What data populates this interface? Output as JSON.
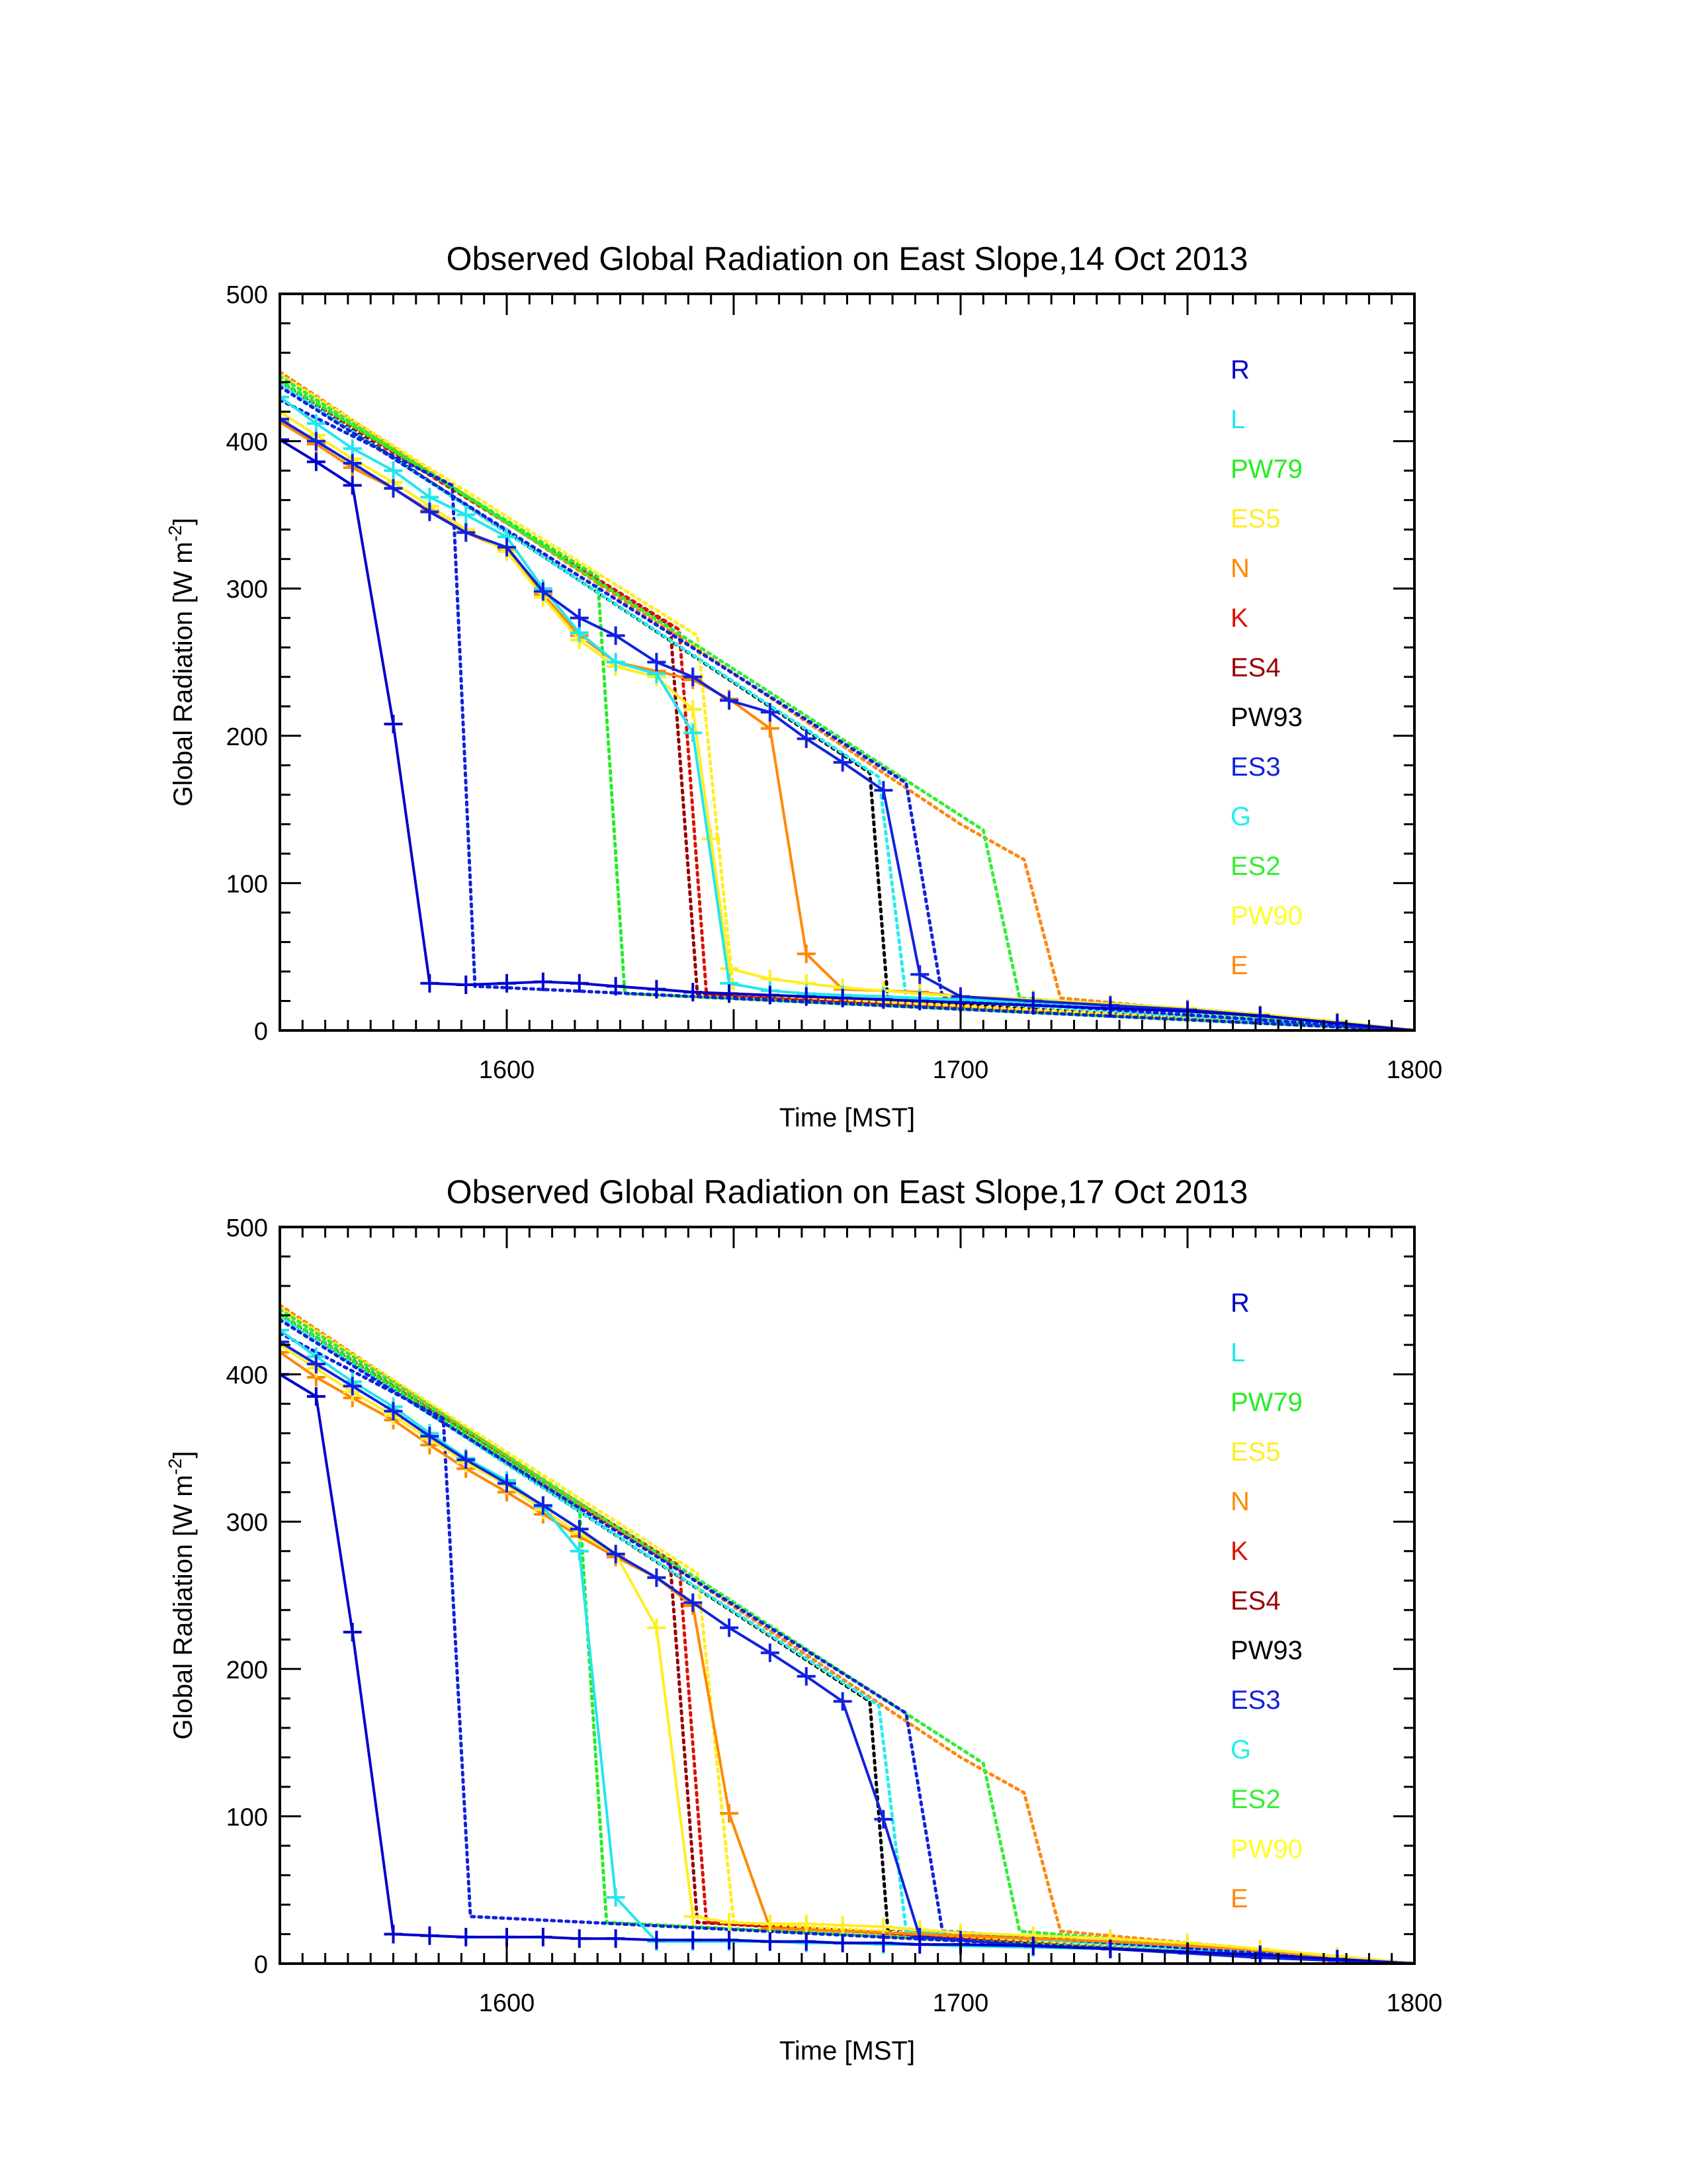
{
  "colors": {
    "R": "#0000cc",
    "L": "#22e6ee",
    "PW79": "#22ee22",
    "ES5": "#ffee22",
    "N": "#ff8800",
    "K": "#dd1100",
    "ES4": "#990000",
    "PW93": "#000000",
    "ES3": "#1122dd",
    "G": "#22eeee",
    "ES2": "#33ee33",
    "PW90": "#ffff22",
    "E": "#ff8811"
  },
  "chart_data": [
    {
      "type": "line",
      "title": "Observed Global Radiation on East Slope,14 Oct 2013",
      "xlabel": "Time [MST]",
      "ylabel": "Global Radiation [W m",
      "ylabel_sup": "-2",
      "ylabel_end": "]",
      "xlim": [
        1550,
        1800
      ],
      "ylim": [
        0,
        500
      ],
      "xticks": [
        1600,
        1700,
        1800
      ],
      "yticks": [
        0,
        100,
        200,
        300,
        400,
        500
      ],
      "grid": false,
      "legend": "right",
      "legend_entries": [
        "R",
        "L",
        "PW79",
        "ES5",
        "N",
        "K",
        "ES4",
        "PW93",
        "ES3",
        "G",
        "ES2",
        "PW90",
        "E"
      ],
      "series": [
        {
          "name": "PW93",
          "style": "dotted",
          "x": [
            1550,
            1680,
            1684,
            1800
          ],
          "y": [
            440,
            175,
            20,
            0
          ]
        },
        {
          "name": "ES4",
          "style": "dotted",
          "x": [
            1550,
            1636,
            1642,
            1800
          ],
          "y": [
            441,
            275,
            25,
            0
          ]
        },
        {
          "name": "K",
          "style": "dotted",
          "x": [
            1550,
            1638,
            1644,
            1800
          ],
          "y": [
            440,
            272,
            25,
            0
          ]
        },
        {
          "name": "E",
          "style": "dotted",
          "x": [
            1550,
            1700,
            1714,
            1722,
            1800
          ],
          "y": [
            447,
            140,
            116,
            22,
            0
          ]
        },
        {
          "name": "ES5",
          "style": "dotted",
          "x": [
            1550,
            1642,
            1650,
            1800
          ],
          "y": [
            445,
            268,
            25,
            0
          ]
        },
        {
          "name": "ES2",
          "style": "dotted",
          "x": [
            1550,
            1705,
            1713,
            1800
          ],
          "y": [
            444,
            136,
            22,
            0
          ]
        },
        {
          "name": "PW79",
          "style": "dotted",
          "x": [
            1550,
            1620,
            1626,
            1800
          ],
          "y": [
            441,
            308,
            25,
            0
          ]
        },
        {
          "name": "G",
          "style": "dotted",
          "x": [
            1550,
            1682,
            1688,
            1800
          ],
          "y": [
            439,
            172,
            22,
            0
          ]
        },
        {
          "name": "ES3",
          "style": "dotted",
          "x": [
            1550,
            1588,
            1593,
            1800
          ],
          "y": [
            428,
            370,
            30,
            0
          ]
        },
        {
          "name": "ES3",
          "style": "dotted",
          "x": [
            1550,
            1688,
            1696,
            1800
          ],
          "y": [
            437,
            168,
            22,
            0
          ]
        },
        {
          "name": "N",
          "style": "solid",
          "x": [
            1550,
            1558,
            1566,
            1575,
            1583,
            1591,
            1600,
            1608,
            1616,
            1624,
            1633,
            1641,
            1649,
            1658,
            1666,
            1674,
            1683,
            1691,
            1700,
            1716,
            1733,
            1750,
            1766,
            1783,
            1800
          ],
          "y": [
            413,
            398,
            382,
            368,
            353,
            338,
            326,
            296,
            268,
            250,
            244,
            238,
            225,
            205,
            52,
            28,
            27,
            26,
            23,
            21,
            18,
            15,
            11,
            6,
            0
          ]
        },
        {
          "name": "ES5",
          "style": "solid",
          "x": [
            1550,
            1558,
            1566,
            1575,
            1583,
            1591,
            1600,
            1608,
            1616,
            1624,
            1633,
            1641,
            1645,
            1649,
            1658,
            1666,
            1674,
            1683,
            1691,
            1700,
            1716,
            1733,
            1750,
            1766,
            1783,
            1800
          ],
          "y": [
            420,
            404,
            388,
            372,
            356,
            340,
            325,
            294,
            265,
            247,
            240,
            218,
            130,
            42,
            35,
            32,
            29,
            27,
            25,
            23,
            21,
            18,
            15,
            11,
            6,
            0
          ]
        },
        {
          "name": "L",
          "style": "solid",
          "x": [
            1550,
            1558,
            1566,
            1575,
            1583,
            1591,
            1600,
            1608,
            1616,
            1624,
            1633,
            1641,
            1649,
            1658,
            1666,
            1674,
            1683,
            1691,
            1700,
            1716,
            1733,
            1750,
            1766,
            1783,
            1800
          ],
          "y": [
            430,
            412,
            395,
            380,
            362,
            350,
            335,
            300,
            270,
            250,
            242,
            202,
            32,
            27,
            25,
            24,
            23,
            22,
            21,
            19,
            17,
            14,
            10,
            5,
            0
          ]
        },
        {
          "name": "ES3",
          "style": "solid",
          "x": [
            1550,
            1558,
            1566,
            1575,
            1583,
            1591,
            1600,
            1608,
            1616,
            1624,
            1633,
            1641,
            1649,
            1658,
            1666,
            1674,
            1683,
            1691,
            1700,
            1716,
            1733,
            1750,
            1766,
            1783,
            1800
          ],
          "y": [
            415,
            400,
            385,
            368,
            352,
            338,
            328,
            298,
            280,
            268,
            250,
            240,
            224,
            216,
            198,
            182,
            163,
            38,
            23,
            20,
            17,
            14,
            10,
            5,
            0
          ]
        },
        {
          "name": "R",
          "style": "solid",
          "x": [
            1550,
            1558,
            1566,
            1575,
            1583,
            1591,
            1600,
            1608,
            1616,
            1624,
            1633,
            1641,
            1649,
            1658,
            1666,
            1674,
            1683,
            1691,
            1700,
            1716,
            1733,
            1750,
            1766,
            1783,
            1800
          ],
          "y": [
            401,
            386,
            370,
            208,
            32,
            31,
            32,
            33,
            32,
            30,
            28,
            26,
            25,
            24,
            23,
            22,
            21,
            20,
            19,
            17,
            15,
            13,
            10,
            5,
            0
          ]
        }
      ]
    },
    {
      "type": "line",
      "title": "Observed Global Radiation on East Slope,17 Oct 2013",
      "xlabel": "Time [MST]",
      "ylabel": "Global Radiation [W m",
      "ylabel_sup": "-2",
      "ylabel_end": "]",
      "xlim": [
        1550,
        1800
      ],
      "ylim": [
        0,
        500
      ],
      "xticks": [
        1600,
        1700,
        1800
      ],
      "yticks": [
        0,
        100,
        200,
        300,
        400,
        500
      ],
      "grid": false,
      "legend": "right",
      "legend_entries": [
        "R",
        "L",
        "PW79",
        "ES5",
        "N",
        "K",
        "ES4",
        "PW93",
        "ES3",
        "G",
        "ES2",
        "PW90",
        "E"
      ],
      "series": [
        {
          "name": "PW93",
          "style": "dotted",
          "x": [
            1550,
            1680,
            1684,
            1800
          ],
          "y": [
            440,
            178,
            22,
            0
          ]
        },
        {
          "name": "ES4",
          "style": "dotted",
          "x": [
            1550,
            1636,
            1642,
            1800
          ],
          "y": [
            441,
            272,
            28,
            0
          ]
        },
        {
          "name": "K",
          "style": "dotted",
          "x": [
            1550,
            1638,
            1644,
            1800
          ],
          "y": [
            440,
            270,
            28,
            0
          ]
        },
        {
          "name": "E",
          "style": "dotted",
          "x": [
            1550,
            1700,
            1714,
            1722,
            1800
          ],
          "y": [
            447,
            140,
            116,
            22,
            0
          ]
        },
        {
          "name": "ES5",
          "style": "dotted",
          "x": [
            1550,
            1642,
            1650,
            1800
          ],
          "y": [
            445,
            265,
            28,
            0
          ]
        },
        {
          "name": "ES2",
          "style": "dotted",
          "x": [
            1550,
            1705,
            1713,
            1800
          ],
          "y": [
            444,
            136,
            22,
            0
          ]
        },
        {
          "name": "PW79",
          "style": "dotted",
          "x": [
            1550,
            1616,
            1622,
            1800
          ],
          "y": [
            441,
            310,
            28,
            0
          ]
        },
        {
          "name": "G",
          "style": "dotted",
          "x": [
            1550,
            1682,
            1688,
            1800
          ],
          "y": [
            439,
            175,
            22,
            0
          ]
        },
        {
          "name": "ES3",
          "style": "dotted",
          "x": [
            1550,
            1586,
            1592,
            1800
          ],
          "y": [
            428,
            370,
            32,
            0
          ]
        },
        {
          "name": "ES3",
          "style": "dotted",
          "x": [
            1550,
            1688,
            1696,
            1800
          ],
          "y": [
            437,
            170,
            22,
            0
          ]
        },
        {
          "name": "N",
          "style": "solid",
          "x": [
            1550,
            1558,
            1566,
            1575,
            1583,
            1591,
            1600,
            1608,
            1616,
            1624,
            1633,
            1641,
            1649,
            1658,
            1666,
            1674,
            1683,
            1691,
            1700,
            1716,
            1733,
            1750,
            1766,
            1783,
            1800
          ],
          "y": [
            415,
            398,
            384,
            369,
            352,
            336,
            320,
            305,
            290,
            276,
            262,
            243,
            102,
            24,
            23,
            22,
            21,
            20,
            19,
            17,
            15,
            12,
            9,
            4,
            0
          ]
        },
        {
          "name": "ES5",
          "style": "solid",
          "x": [
            1550,
            1558,
            1566,
            1575,
            1583,
            1591,
            1600,
            1608,
            1616,
            1624,
            1633,
            1641,
            1649,
            1658,
            1666,
            1674,
            1683,
            1691,
            1700,
            1716,
            1733,
            1750,
            1766,
            1783,
            1800
          ],
          "y": [
            420,
            404,
            388,
            372,
            356,
            340,
            325,
            308,
            292,
            278,
            228,
            32,
            28,
            27,
            27,
            26,
            25,
            23,
            21,
            19,
            17,
            14,
            10,
            5,
            0
          ]
        },
        {
          "name": "L",
          "style": "solid",
          "x": [
            1550,
            1558,
            1566,
            1575,
            1583,
            1591,
            1600,
            1608,
            1616,
            1624,
            1633,
            1641,
            1649,
            1658,
            1666,
            1674,
            1683,
            1691,
            1700,
            1716,
            1733,
            1750,
            1766,
            1783,
            1800
          ],
          "y": [
            430,
            412,
            395,
            378,
            360,
            343,
            328,
            310,
            280,
            45,
            15,
            15,
            15,
            15,
            14,
            14,
            13,
            13,
            12,
            11,
            10,
            8,
            6,
            3,
            0
          ]
        },
        {
          "name": "ES3",
          "style": "solid",
          "x": [
            1550,
            1558,
            1566,
            1575,
            1583,
            1591,
            1600,
            1608,
            1616,
            1624,
            1633,
            1641,
            1649,
            1658,
            1666,
            1674,
            1683,
            1691,
            1700,
            1716,
            1733,
            1750,
            1766,
            1783,
            1800
          ],
          "y": [
            422,
            407,
            392,
            375,
            358,
            342,
            326,
            311,
            295,
            278,
            262,
            245,
            228,
            211,
            195,
            178,
            98,
            18,
            16,
            12,
            10,
            7,
            4,
            2,
            0
          ]
        },
        {
          "name": "R",
          "style": "solid",
          "x": [
            1550,
            1558,
            1566,
            1575,
            1583,
            1591,
            1600,
            1608,
            1616,
            1624,
            1633,
            1641,
            1649,
            1658,
            1666,
            1674,
            1683,
            1691,
            1700,
            1716,
            1733,
            1750,
            1766,
            1783,
            1800
          ],
          "y": [
            400,
            385,
            225,
            20,
            19,
            18,
            18,
            18,
            17,
            17,
            16,
            16,
            16,
            15,
            15,
            14,
            14,
            13,
            13,
            12,
            10,
            8,
            6,
            3,
            0
          ]
        }
      ]
    }
  ]
}
